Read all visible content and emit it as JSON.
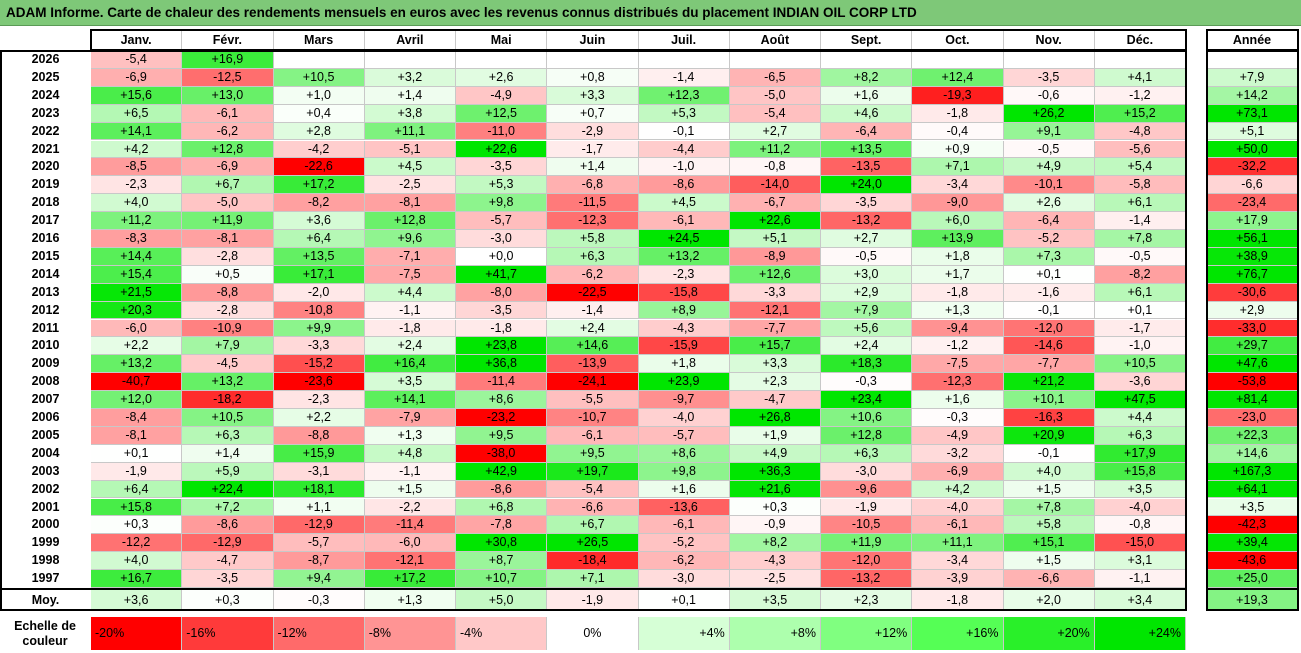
{
  "title": "ADAM Informe. Carte de chaleur des rendements mensuels en euros avec les revenus connus distribués du placement INDIAN OIL CORP LTD",
  "chart_data": {
    "type": "heatmap",
    "months": [
      "Janv.",
      "Févr.",
      "Mars",
      "Avril",
      "Mai",
      "Juin",
      "Juil.",
      "Août",
      "Sept.",
      "Oct.",
      "Nov.",
      "Déc."
    ],
    "year_header": "Année",
    "rows": [
      {
        "year": "2026",
        "values": [
          "-5,4",
          "+16,9",
          "",
          "",
          "",
          "",
          "",
          "",
          "",
          "",
          "",
          ""
        ],
        "annual": ""
      },
      {
        "year": "2025",
        "values": [
          "-6,9",
          "-12,5",
          "+10,5",
          "+3,2",
          "+2,6",
          "+0,8",
          "-1,4",
          "-6,5",
          "+8,2",
          "+12,4",
          "-3,5",
          "+4,1"
        ],
        "annual": "+7,9"
      },
      {
        "year": "2024",
        "values": [
          "+15,6",
          "+13,0",
          "+1,0",
          "+1,4",
          "-4,9",
          "+3,3",
          "+12,3",
          "-5,0",
          "+1,6",
          "-19,3",
          "-0,6",
          "-1,2"
        ],
        "annual": "+14,2"
      },
      {
        "year": "2023",
        "values": [
          "+6,5",
          "-6,1",
          "+0,4",
          "+3,8",
          "+12,5",
          "+0,7",
          "+5,3",
          "-5,4",
          "+4,6",
          "-1,8",
          "+26,2",
          "+15,2"
        ],
        "annual": "+73,1"
      },
      {
        "year": "2022",
        "values": [
          "+14,1",
          "-6,2",
          "+2,8",
          "+11,1",
          "-11,0",
          "-2,9",
          "-0,1",
          "+2,7",
          "-6,4",
          "-0,4",
          "+9,1",
          "-4,8"
        ],
        "annual": "+5,1"
      },
      {
        "year": "2021",
        "values": [
          "+4,2",
          "+12,8",
          "-4,2",
          "-5,1",
          "+22,6",
          "-1,7",
          "-4,4",
          "+11,2",
          "+13,5",
          "+0,9",
          "-0,5",
          "-5,6"
        ],
        "annual": "+50,0"
      },
      {
        "year": "2020",
        "values": [
          "-8,5",
          "-6,9",
          "-22,6",
          "+4,5",
          "-3,5",
          "+1,4",
          "-1,0",
          "-0,8",
          "-13,5",
          "+7,1",
          "+4,9",
          "+5,4"
        ],
        "annual": "-32,2"
      },
      {
        "year": "2019",
        "values": [
          "-2,3",
          "+6,7",
          "+17,2",
          "-2,5",
          "+5,3",
          "-6,8",
          "-8,6",
          "-14,0",
          "+24,0",
          "-3,4",
          "-10,1",
          "-5,8"
        ],
        "annual": "-6,6"
      },
      {
        "year": "2018",
        "values": [
          "+4,0",
          "-5,0",
          "-8,2",
          "-8,1",
          "+9,8",
          "-11,5",
          "+4,5",
          "-6,7",
          "-3,5",
          "-9,0",
          "+2,6",
          "+6,1"
        ],
        "annual": "-23,4"
      },
      {
        "year": "2017",
        "values": [
          "+11,2",
          "+11,9",
          "+3,6",
          "+12,8",
          "-5,7",
          "-12,3",
          "-6,1",
          "+22,6",
          "-13,2",
          "+6,0",
          "-6,4",
          "-1,4"
        ],
        "annual": "+17,9"
      },
      {
        "year": "2016",
        "values": [
          "-8,3",
          "-8,1",
          "+6,4",
          "+9,6",
          "-3,0",
          "+5,8",
          "+24,5",
          "+5,1",
          "+2,7",
          "+13,9",
          "-5,2",
          "+7,8"
        ],
        "annual": "+56,1"
      },
      {
        "year": "2015",
        "values": [
          "+14,4",
          "-2,8",
          "+13,5",
          "-7,1",
          "+0,0",
          "+6,3",
          "+13,2",
          "-8,9",
          "-0,5",
          "+1,8",
          "+7,3",
          "-0,5"
        ],
        "annual": "+38,9"
      },
      {
        "year": "2014",
        "values": [
          "+15,4",
          "+0,5",
          "+17,1",
          "-7,5",
          "+41,7",
          "-6,2",
          "-2,3",
          "+12,6",
          "+3,0",
          "+1,7",
          "+0,1",
          "-8,2"
        ],
        "annual": "+76,7"
      },
      {
        "year": "2013",
        "values": [
          "+21,5",
          "-8,8",
          "-2,0",
          "+4,4",
          "-8,0",
          "-22,5",
          "-15,8",
          "-3,3",
          "+2,9",
          "-1,8",
          "-1,6",
          "+6,1"
        ],
        "annual": "-30,6"
      },
      {
        "year": "2012",
        "values": [
          "+20,3",
          "-2,8",
          "-10,8",
          "-1,1",
          "-3,5",
          "-1,4",
          "+8,9",
          "-12,1",
          "+7,9",
          "+1,3",
          "-0,1",
          "+0,1"
        ],
        "annual": "+2,9"
      },
      {
        "year": "2011",
        "values": [
          "-6,0",
          "-10,9",
          "+9,9",
          "-1,8",
          "-1,8",
          "+2,4",
          "-4,3",
          "-7,7",
          "+5,6",
          "-9,4",
          "-12,0",
          "-1,7"
        ],
        "annual": "-33,0"
      },
      {
        "year": "2010",
        "values": [
          "+2,2",
          "+7,9",
          "-3,3",
          "+2,4",
          "+23,8",
          "+14,6",
          "-15,9",
          "+15,7",
          "+2,4",
          "-1,2",
          "-14,6",
          "-1,0"
        ],
        "annual": "+29,7"
      },
      {
        "year": "2009",
        "values": [
          "+13,2",
          "-4,5",
          "-15,2",
          "+16,4",
          "+36,8",
          "-13,9",
          "+1,8",
          "+3,3",
          "+18,3",
          "-7,5",
          "-7,7",
          "+10,5"
        ],
        "annual": "+47,6"
      },
      {
        "year": "2008",
        "values": [
          "-40,7",
          "+13,2",
          "-23,6",
          "+3,5",
          "-11,4",
          "-24,1",
          "+23,9",
          "+2,3",
          "-0,3",
          "-12,3",
          "+21,2",
          "-3,6"
        ],
        "annual": "-53,8"
      },
      {
        "year": "2007",
        "values": [
          "+12,0",
          "-18,2",
          "-2,3",
          "+14,1",
          "+8,6",
          "-5,5",
          "-9,7",
          "-4,7",
          "+23,4",
          "+1,6",
          "+10,1",
          "+47,5"
        ],
        "annual": "+81,4"
      },
      {
        "year": "2006",
        "values": [
          "-8,4",
          "+10,5",
          "+2,2",
          "-7,9",
          "-23,2",
          "-10,7",
          "-4,0",
          "+26,8",
          "+10,6",
          "-0,3",
          "-16,3",
          "+4,4"
        ],
        "annual": "-23,0"
      },
      {
        "year": "2005",
        "values": [
          "-8,1",
          "+6,3",
          "-8,8",
          "+1,3",
          "+9,5",
          "-6,1",
          "-5,7",
          "+1,9",
          "+12,8",
          "-4,9",
          "+20,9",
          "+6,3"
        ],
        "annual": "+22,3"
      },
      {
        "year": "2004",
        "values": [
          "+0,1",
          "+1,4",
          "+15,9",
          "+4,8",
          "-38,0",
          "+9,5",
          "+8,6",
          "+4,9",
          "+6,3",
          "-3,2",
          "-0,1",
          "+17,9"
        ],
        "annual": "+14,6"
      },
      {
        "year": "2003",
        "values": [
          "-1,9",
          "+5,9",
          "-3,1",
          "-1,1",
          "+42,9",
          "+19,7",
          "+9,8",
          "+36,3",
          "-3,0",
          "-6,9",
          "+4,0",
          "+15,8"
        ],
        "annual": "+167,3"
      },
      {
        "year": "2002",
        "values": [
          "+6,4",
          "+22,4",
          "+18,1",
          "+1,5",
          "-8,6",
          "-5,4",
          "+1,6",
          "+21,6",
          "-9,6",
          "+4,2",
          "+1,5",
          "+3,5"
        ],
        "annual": "+64,1"
      },
      {
        "year": "2001",
        "values": [
          "+15,8",
          "+7,2",
          "+1,1",
          "-2,2",
          "+6,8",
          "-6,6",
          "-13,6",
          "+0,3",
          "-1,9",
          "-4,0",
          "+7,8",
          "-4,0"
        ],
        "annual": "+3,5"
      },
      {
        "year": "2000",
        "values": [
          "+0,3",
          "-8,6",
          "-12,9",
          "-11,4",
          "-7,8",
          "+6,7",
          "-6,1",
          "-0,9",
          "-10,5",
          "-6,1",
          "+5,8",
          "-0,8"
        ],
        "annual": "-42,3"
      },
      {
        "year": "1999",
        "values": [
          "-12,2",
          "-12,9",
          "-5,7",
          "-6,0",
          "+30,8",
          "+26,5",
          "-5,2",
          "+8,2",
          "+11,9",
          "+11,1",
          "+15,1",
          "-15,0"
        ],
        "annual": "+39,4"
      },
      {
        "year": "1998",
        "values": [
          "+4,0",
          "-4,7",
          "-8,7",
          "-12,1",
          "+8,7",
          "-18,4",
          "-6,2",
          "-4,3",
          "-12,0",
          "-3,4",
          "+1,5",
          "+3,1"
        ],
        "annual": "-43,6"
      },
      {
        "year": "1997",
        "values": [
          "+16,7",
          "-3,5",
          "+9,4",
          "+17,2",
          "+10,7",
          "+7,1",
          "-3,0",
          "-2,5",
          "-13,2",
          "-3,9",
          "-6,6",
          "-1,1"
        ],
        "annual": "+25,0"
      }
    ],
    "average": {
      "label": "Moy.",
      "values": [
        "+3,6",
        "+0,3",
        "-0,3",
        "+1,3",
        "+5,0",
        "-1,9",
        "+0,1",
        "+3,5",
        "+2,3",
        "-1,8",
        "+2,0",
        "+3,4"
      ],
      "annual": "+19,3"
    },
    "scale": {
      "label": "Echelle de couleur",
      "steps": [
        {
          "text": "-20%",
          "color": "#ff0000"
        },
        {
          "text": "-16%",
          "color": "#ff3a3a"
        },
        {
          "text": "-12%",
          "color": "#ff6a6a"
        },
        {
          "text": "-8%",
          "color": "#ff9494"
        },
        {
          "text": "-4%",
          "color": "#ffc8c8"
        },
        {
          "text": "0%",
          "color": "#ffffff"
        },
        {
          "text": "+4%",
          "color": "#d6ffd6"
        },
        {
          "text": "+8%",
          "color": "#adffad"
        },
        {
          "text": "+12%",
          "color": "#80ff80"
        },
        {
          "text": "+16%",
          "color": "#55ff55"
        },
        {
          "text": "+20%",
          "color": "#29f029"
        },
        {
          "text": "+24%",
          "color": "#00e600"
        }
      ]
    }
  }
}
